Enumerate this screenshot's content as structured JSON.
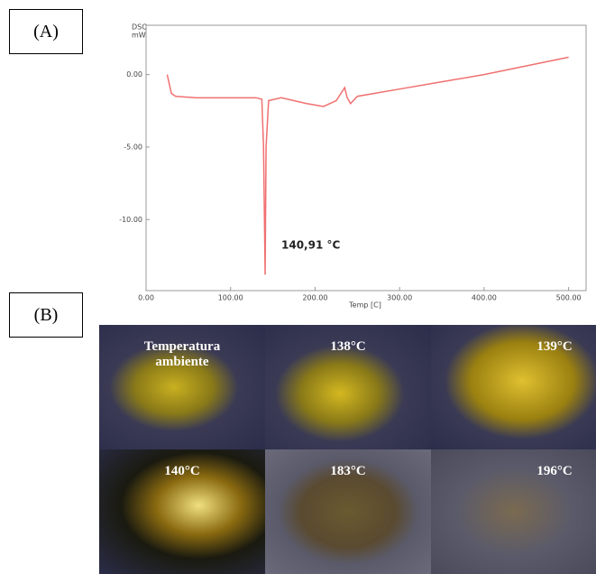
{
  "panel_a_label": "(A)",
  "panel_b_label": "(B)",
  "chart_data": {
    "type": "line",
    "y_label_top": "DSC",
    "y_label_unit": "mW",
    "x_label": "Temp [C]",
    "annotation": "140,91 °C",
    "x": [
      25,
      30,
      35,
      60,
      130,
      137,
      139,
      140.91,
      142,
      145,
      160,
      190,
      210,
      225,
      235,
      238,
      242,
      250,
      270,
      300,
      350,
      400,
      450,
      500
    ],
    "series": [
      {
        "color": "#f07070",
        "values": [
          0.0,
          -1.3,
          -1.5,
          -1.6,
          -1.6,
          -1.7,
          -5,
          -13.8,
          -5,
          -1.8,
          -1.6,
          -2.0,
          -2.2,
          -1.8,
          -0.9,
          -1.6,
          -2.0,
          -1.5,
          -1.3,
          -1.0,
          -0.5,
          0.0,
          0.6,
          1.2
        ]
      }
    ],
    "xlim": [
      0,
      510
    ],
    "ylim": [
      -14.9,
      3.4
    ],
    "xticks": [
      {
        "value": 0,
        "label": "0.00"
      },
      {
        "value": 100,
        "label": "100.00"
      },
      {
        "value": 200,
        "label": "200.00"
      },
      {
        "value": 300,
        "label": "300.00"
      },
      {
        "value": 400,
        "label": "400.00"
      },
      {
        "value": 500,
        "label": "500.00"
      }
    ],
    "yticks": [
      {
        "value": 0,
        "label": "0.00"
      },
      {
        "value": -5,
        "label": "-5.00"
      },
      {
        "value": -10,
        "label": "-10.00"
      }
    ]
  },
  "photos": [
    "Temperatura ambiente",
    "138°C",
    "139°C",
    "140°C",
    "183°C",
    "196°C"
  ]
}
